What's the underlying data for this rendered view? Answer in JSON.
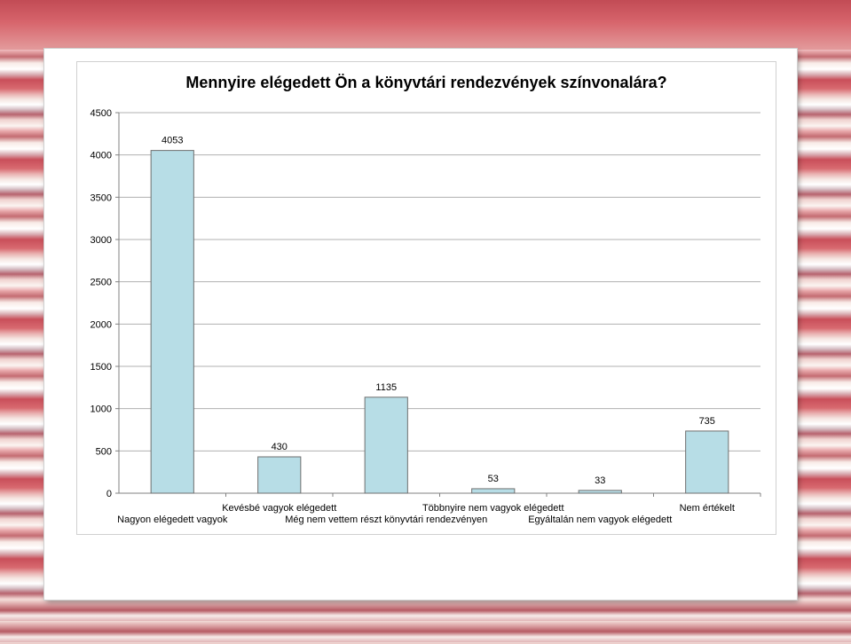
{
  "chart_data": {
    "type": "bar",
    "title": "Mennyire elégedett Ön a könyvtári rendezvények színvonalára?",
    "categories": [
      "Nagyon elégedett vagyok",
      "Kevésbé vagyok elégedett",
      "Még nem vettem részt könyvtári rendezvényen",
      "Többnyire nem vagyok elégedett",
      "Egyáltalán nem vagyok elégedett",
      "Nem értékelt"
    ],
    "values": [
      4053,
      430,
      1135,
      53,
      33,
      735
    ],
    "ylim": [
      0,
      4500
    ],
    "yticks": [
      0,
      500,
      1000,
      1500,
      2000,
      2500,
      3000,
      3500,
      4000,
      4500
    ],
    "xlabel": "",
    "ylabel": "",
    "grid": true,
    "bar_color": "#b7dde6",
    "bar_edge_color": "#6f6f6f",
    "grid_color": "#b0b0b0"
  }
}
